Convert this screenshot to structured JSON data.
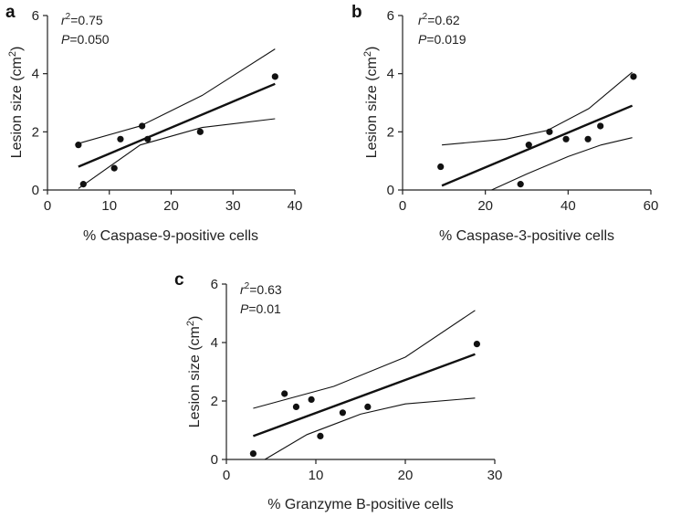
{
  "chart_data": [
    {
      "type": "scatter",
      "panel": "a",
      "xlabel": "% Caspase-9-positive cells",
      "ylabel_main": "Lesion size (cm",
      "ylabel_sup": "2",
      "ylabel_close": ")",
      "xlim": [
        0,
        40
      ],
      "ylim": [
        0,
        6
      ],
      "xticks": [
        0,
        10,
        20,
        30,
        40
      ],
      "yticks": [
        0,
        2,
        4,
        6
      ],
      "x_tick_labels": [
        "0",
        "10",
        "20",
        "30",
        "40"
      ],
      "y_tick_labels": [
        "0",
        "2",
        "4",
        "6"
      ],
      "r2_prefix": "r",
      "r2_sup": "2",
      "r2_value": "=0.75",
      "p_prefix": "P",
      "p_value": "=0.050",
      "points": [
        {
          "x": 5.0,
          "y": 1.55
        },
        {
          "x": 5.8,
          "y": 0.2
        },
        {
          "x": 10.8,
          "y": 0.75
        },
        {
          "x": 11.8,
          "y": 1.75
        },
        {
          "x": 15.3,
          "y": 2.2
        },
        {
          "x": 16.2,
          "y": 1.75
        },
        {
          "x": 24.7,
          "y": 2.0
        },
        {
          "x": 36.8,
          "y": 3.9
        }
      ],
      "fit": {
        "x": [
          5,
          36.8
        ],
        "y": [
          0.8,
          3.65
        ]
      },
      "ci_upper": {
        "x": [
          5,
          15,
          25,
          36.8
        ],
        "y": [
          1.6,
          2.2,
          3.25,
          4.85
        ]
      },
      "ci_lower": {
        "x": [
          5,
          15,
          25,
          36.8
        ],
        "y": [
          0.05,
          1.55,
          2.15,
          2.45
        ]
      }
    },
    {
      "type": "scatter",
      "panel": "b",
      "xlabel": "% Caspase-3-positive cells",
      "ylabel_main": "Lesion size (cm",
      "ylabel_sup": "2",
      "ylabel_close": ")",
      "xlim": [
        0,
        60
      ],
      "ylim": [
        0,
        6
      ],
      "xticks": [
        0,
        20,
        40,
        60
      ],
      "yticks": [
        0,
        2,
        4,
        6
      ],
      "x_tick_labels": [
        "0",
        "20",
        "40",
        "60"
      ],
      "y_tick_labels": [
        "0",
        "2",
        "4",
        "6"
      ],
      "r2_prefix": "r",
      "r2_sup": "2",
      "r2_value": "=0.62",
      "p_prefix": "P",
      "p_value": "=0.019",
      "points": [
        {
          "x": 9.2,
          "y": 0.8
        },
        {
          "x": 28.5,
          "y": 0.2
        },
        {
          "x": 30.5,
          "y": 1.55
        },
        {
          "x": 35.5,
          "y": 2.0
        },
        {
          "x": 39.5,
          "y": 1.75
        },
        {
          "x": 44.8,
          "y": 1.75
        },
        {
          "x": 47.8,
          "y": 2.2
        },
        {
          "x": 55.8,
          "y": 3.9
        }
      ],
      "fit": {
        "x": [
          9.5,
          55.5
        ],
        "y": [
          0.15,
          2.9
        ]
      },
      "ci_upper": {
        "x": [
          9.5,
          25,
          35,
          45,
          55.5
        ],
        "y": [
          1.55,
          1.75,
          2.05,
          2.8,
          4.05
        ]
      },
      "ci_lower": {
        "x": [
          21.5,
          30,
          40,
          48,
          55.5
        ],
        "y": [
          0.0,
          0.55,
          1.15,
          1.55,
          1.8
        ]
      }
    },
    {
      "type": "scatter",
      "panel": "c",
      "xlabel": "% Granzyme B-positive cells",
      "ylabel_main": "Lesion size (cm",
      "ylabel_sup": "2",
      "ylabel_close": ")",
      "xlim": [
        0,
        30
      ],
      "ylim": [
        0,
        6
      ],
      "xticks": [
        0,
        10,
        20,
        30
      ],
      "yticks": [
        0,
        2,
        4,
        6
      ],
      "x_tick_labels": [
        "0",
        "10",
        "20",
        "30"
      ],
      "y_tick_labels": [
        "0",
        "2",
        "4",
        "6"
      ],
      "r2_prefix": "r",
      "r2_sup": "2",
      "r2_value": "=0.63",
      "p_prefix": "P",
      "p_value": "=0.01",
      "points": [
        {
          "x": 3.0,
          "y": 0.2
        },
        {
          "x": 6.5,
          "y": 2.25
        },
        {
          "x": 7.8,
          "y": 1.8
        },
        {
          "x": 9.5,
          "y": 2.05
        },
        {
          "x": 10.5,
          "y": 0.8
        },
        {
          "x": 13.0,
          "y": 1.6
        },
        {
          "x": 15.8,
          "y": 1.8
        },
        {
          "x": 28.0,
          "y": 3.95
        }
      ],
      "fit": {
        "x": [
          3,
          27.8
        ],
        "y": [
          0.8,
          3.6
        ]
      },
      "ci_upper": {
        "x": [
          3,
          12,
          20,
          27.8
        ],
        "y": [
          1.75,
          2.5,
          3.5,
          5.1
        ]
      },
      "ci_lower": {
        "x": [
          4.3,
          9,
          15,
          20,
          27.8
        ],
        "y": [
          0.0,
          0.85,
          1.55,
          1.9,
          2.1
        ]
      }
    }
  ]
}
